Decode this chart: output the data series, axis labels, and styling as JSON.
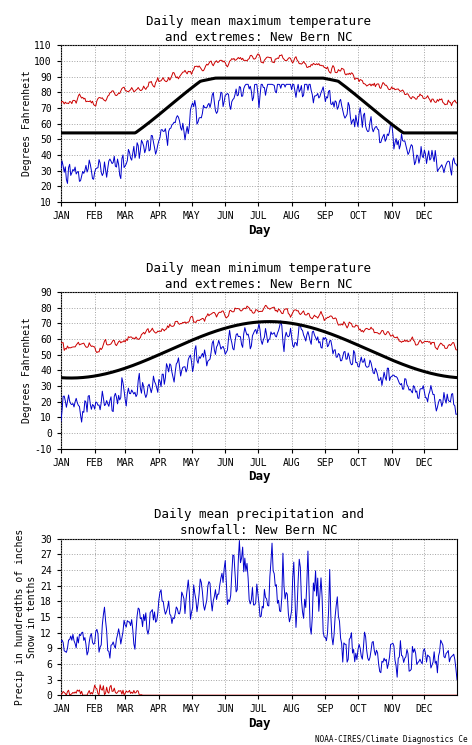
{
  "title1": "Daily mean maximum temperature\nand extremes: New Bern NC",
  "title2": "Daily mean minimum temperature\nand extremes: New Bern NC",
  "title3": "Daily mean precipitation and\nsnowfall: New Bern NC",
  "ylabel1": "Degrees Fahrenheit",
  "ylabel2": "Degrees Fahrenheit",
  "ylabel3": "Precip in hundredths of inches\nSnow in tenths",
  "xlabel": "Day",
  "month_labels": [
    "JAN",
    "FEB",
    "MAR",
    "APR",
    "MAY",
    "JUN",
    "JUL",
    "AUG",
    "SEP",
    "OCT",
    "NOV",
    "DEC"
  ],
  "ylim1": [
    10,
    110
  ],
  "ylim2": [
    -10,
    90
  ],
  "ylim3": [
    0,
    30
  ],
  "yticks1": [
    10,
    20,
    30,
    40,
    50,
    60,
    70,
    80,
    90,
    100,
    110
  ],
  "yticks2": [
    -10,
    0,
    10,
    20,
    30,
    40,
    50,
    60,
    70,
    80,
    90
  ],
  "yticks3": [
    0,
    3,
    6,
    9,
    12,
    15,
    18,
    21,
    24,
    27,
    30
  ],
  "color_mean": "#000000",
  "color_record_high": "#cc0000",
  "color_daily": "#0000cc",
  "color_snow": "#cc0000",
  "lw_mean": 2.2,
  "lw_extreme": 0.7,
  "background": "#ffffff",
  "grid_color": "#999999",
  "credit": "NOAA-CIRES/Climate Diagnostics Ce",
  "title_fontsize": 9,
  "label_fontsize": 7.5,
  "tick_fontsize": 7,
  "credit_fontsize": 5.5
}
